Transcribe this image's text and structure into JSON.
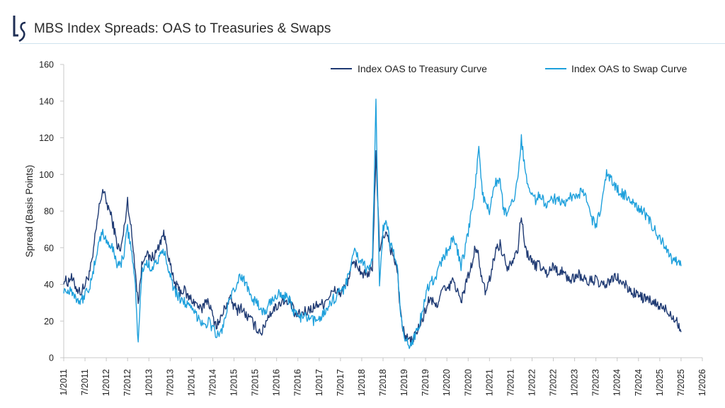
{
  "header": {
    "title": "MBS Index Spreads: OAS to Treasuries & Swaps",
    "logo_icon": "ls-logo-icon"
  },
  "colors": {
    "treasury": "#1f3a73",
    "swap": "#1ea0dc",
    "axis": "#c8c8c8",
    "logo": "#1f2f55"
  },
  "chart_data": {
    "type": "line",
    "title": "MBS Index Spreads: OAS to Treasuries & Swaps",
    "xlabel": "",
    "ylabel": "Spread (Basis Points)",
    "ylim": [
      0,
      160
    ],
    "yticks": [
      0,
      20,
      40,
      60,
      80,
      100,
      120,
      140,
      160
    ],
    "x_start": "1/2011",
    "x_end": "1/2026",
    "xticks": [
      "1/2011",
      "7/2011",
      "1/2012",
      "7/2012",
      "1/2013",
      "7/2013",
      "1/2014",
      "7/2014",
      "1/2015",
      "7/2015",
      "1/2016",
      "7/2016",
      "1/2017",
      "7/2017",
      "1/2018",
      "7/2018",
      "1/2019",
      "7/2019",
      "1/2020",
      "7/2020",
      "1/2021",
      "7/2021",
      "1/2022",
      "7/2022",
      "1/2023",
      "7/2023",
      "1/2024",
      "7/2024",
      "1/2025",
      "7/2025",
      "1/2026"
    ],
    "grid": false,
    "legend_position": "top-right",
    "x_frequency": "monthly",
    "series": [
      {
        "name": "Index OAS to Treasury Curve",
        "values": [
          43,
          41,
          44,
          40,
          37,
          36,
          40,
          45,
          52,
          68,
          82,
          92,
          85,
          80,
          72,
          62,
          58,
          70,
          86,
          70,
          52,
          30,
          50,
          58,
          54,
          55,
          57,
          62,
          68,
          62,
          50,
          42,
          38,
          36,
          37,
          33,
          32,
          30,
          28,
          25,
          32,
          30,
          22,
          18,
          20,
          25,
          30,
          32,
          28,
          26,
          28,
          24,
          22,
          20,
          17,
          15,
          14,
          20,
          24,
          26,
          28,
          30,
          32,
          29,
          30,
          24,
          23,
          24,
          25,
          26,
          27,
          28,
          30,
          29,
          32,
          34,
          36,
          37,
          35,
          38,
          42,
          48,
          52,
          50,
          46,
          45,
          44,
          50,
          110,
          60,
          65,
          70,
          60,
          55,
          48,
          22,
          13,
          10,
          9,
          12,
          16,
          20,
          26,
          32,
          30,
          28,
          34,
          38,
          36,
          40,
          42,
          36,
          30,
          38,
          45,
          50,
          60,
          55,
          40,
          36,
          42,
          52,
          60,
          62,
          55,
          50,
          52,
          56,
          60,
          78,
          60,
          56,
          52,
          50,
          52,
          48,
          46,
          48,
          50,
          48,
          47,
          46,
          44,
          42,
          44,
          46,
          44,
          42,
          41,
          43,
          42,
          40,
          39,
          40,
          42,
          43,
          44,
          41,
          40,
          38,
          36,
          35,
          34,
          33,
          32,
          31,
          30,
          29,
          28,
          27,
          26,
          24,
          22,
          20,
          14
        ],
        "color": "#1f3a73"
      },
      {
        "name": "Index OAS to Swap Curve",
        "values": [
          38,
          36,
          38,
          34,
          32,
          31,
          35,
          38,
          42,
          55,
          64,
          68,
          64,
          62,
          58,
          52,
          50,
          58,
          70,
          60,
          44,
          8,
          46,
          52,
          50,
          50,
          52,
          54,
          58,
          54,
          46,
          38,
          34,
          32,
          31,
          28,
          26,
          24,
          22,
          20,
          18,
          20,
          16,
          13,
          12,
          18,
          26,
          32,
          36,
          42,
          44,
          42,
          38,
          34,
          30,
          28,
          26,
          24,
          30,
          32,
          34,
          36,
          34,
          32,
          30,
          24,
          23,
          22,
          22,
          21,
          20,
          20,
          22,
          24,
          26,
          30,
          32,
          34,
          36,
          38,
          44,
          50,
          58,
          55,
          52,
          50,
          46,
          54,
          140,
          40,
          70,
          74,
          62,
          58,
          50,
          22,
          10,
          8,
          7,
          12,
          18,
          24,
          34,
          40,
          42,
          45,
          50,
          55,
          58,
          62,
          65,
          58,
          50,
          58,
          68,
          80,
          95,
          115,
          90,
          82,
          80,
          92,
          96,
          95,
          80,
          78,
          82,
          86,
          100,
          120,
          102,
          95,
          90,
          86,
          88,
          86,
          84,
          85,
          87,
          86,
          85,
          86,
          84,
          88,
          86,
          88,
          92,
          88,
          82,
          75,
          72,
          78,
          88,
          100,
          98,
          95,
          92,
          90,
          89,
          88,
          86,
          84,
          82,
          80,
          78,
          75,
          72,
          68,
          65,
          62,
          58,
          55,
          52,
          52,
          50
        ],
        "color": "#1ea0dc"
      }
    ]
  }
}
